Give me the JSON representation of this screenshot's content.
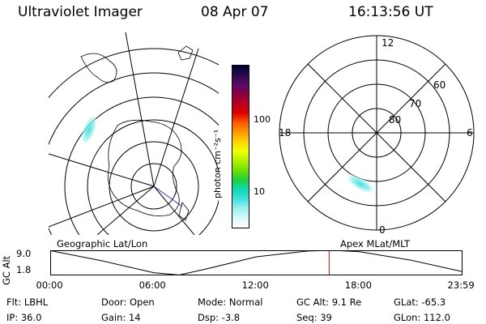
{
  "header": {
    "instrument": "Ultraviolet Imager",
    "date": "08 Apr 07",
    "time": "16:13:56 UT"
  },
  "colorbar": {
    "unit_label": "photon cm⁻²s⁻¹",
    "ticks": [
      "100",
      "10"
    ],
    "colors": [
      "#000033",
      "#2a0a4a",
      "#5a0a6a",
      "#8a0040",
      "#b80020",
      "#e00000",
      "#ff5a00",
      "#ff9a00",
      "#ffd400",
      "#f0ff00",
      "#b4f000",
      "#6ee000",
      "#20d040",
      "#10d8b0",
      "#40e0e0",
      "#9ef0f0",
      "#d8f8f8",
      "#ffffff"
    ]
  },
  "right_polar": {
    "labels": {
      "top": "12",
      "left": "18",
      "right": "6",
      "bottom": "0"
    },
    "lat_labels": [
      "60",
      "70",
      "80"
    ]
  },
  "left_map": {
    "caption": "Geographic Lat/Lon"
  },
  "right_map": {
    "caption": "Apex MLat/MLT"
  },
  "timeline": {
    "ylabel": "GC Alt",
    "yticks": [
      "9.0",
      "1.8"
    ],
    "xticks": [
      "00:00",
      "06:00",
      "12:00",
      "18:00",
      "23:59"
    ],
    "chart_data": {
      "type": "line",
      "x": [
        "00:00",
        "03:00",
        "06:00",
        "07:30",
        "09:00",
        "12:00",
        "15:00",
        "16:30",
        "18:00",
        "21:00",
        "23:59"
      ],
      "values": [
        9.0,
        6.0,
        2.5,
        1.8,
        3.5,
        7.2,
        8.9,
        9.1,
        8.7,
        6.2,
        2.8
      ],
      "ylim": [
        1.8,
        9.0
      ],
      "current_time": "16:13:56"
    }
  },
  "info": {
    "flt": "Flt: LBHL",
    "ip": "IP: 36.0",
    "door": "Door: Open",
    "gain": "Gain: 14",
    "mode": "Mode: Normal",
    "dsp": "Dsp:    -3.8",
    "gcalt": "GC Alt: 9.1 Re",
    "seq": "Seq: 39",
    "glat": "GLat: -65.3",
    "glon": "GLon: 112.0"
  }
}
